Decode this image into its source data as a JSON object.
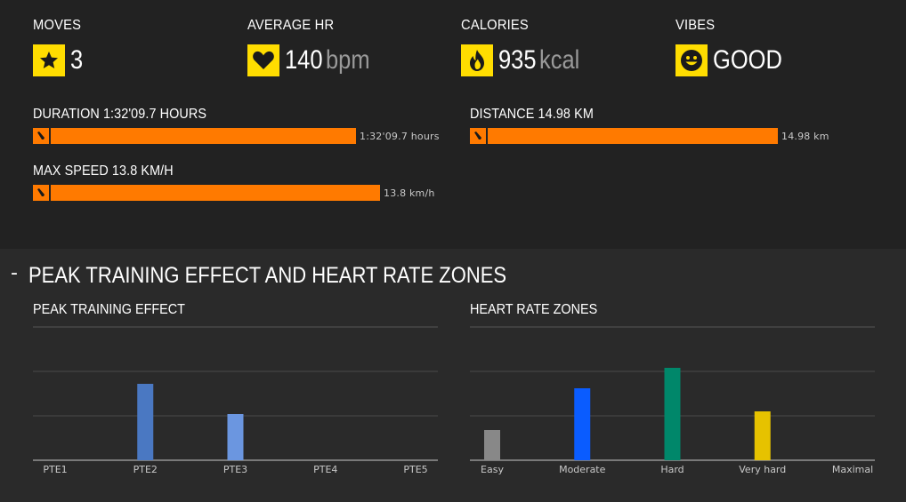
{
  "stats": [
    {
      "title": "MOVES",
      "value": "3",
      "unit": "",
      "icon": "star-icon"
    },
    {
      "title": "AVERAGE HR",
      "value": "140",
      "unit": "bpm",
      "icon": "heart-icon"
    },
    {
      "title": "CALORIES",
      "value": "935",
      "unit": "kcal",
      "icon": "flame-icon"
    },
    {
      "title": "VIBES",
      "value": "GOOD",
      "unit": "",
      "icon": "smiley-icon"
    }
  ],
  "bars": {
    "duration": {
      "title": "DURATION 1:32'09.7 HOURS",
      "label": "1:32'09.7 hours",
      "fraction": 0.95,
      "icon": "sneaker-icon"
    },
    "distance": {
      "title": "DISTANCE 14.98 KM",
      "label": "14.98 km",
      "fraction": 0.95,
      "icon": "sneaker-icon"
    },
    "max_speed": {
      "title": "MAX SPEED 13.8 KM/H",
      "label": "13.8 km/h",
      "fraction": 0.95,
      "icon": "sneaker-icon"
    }
  },
  "section": {
    "collapse_symbol": "-",
    "title": "PEAK TRAINING EFFECT AND HEART RATE ZONES"
  },
  "colors": {
    "accent": "#ffdd00",
    "bar": "#ff7a00"
  },
  "chart_data": [
    {
      "type": "bar",
      "title": "PEAK TRAINING EFFECT",
      "categories": [
        "PTE1",
        "PTE2",
        "PTE3",
        "PTE4",
        "PTE5"
      ],
      "values": [
        0,
        1.72,
        1.04,
        0,
        0
      ],
      "colors": [
        "#4a78c2",
        "#4a78c2",
        "#6b96e0",
        "#4a78c2",
        "#4a78c2"
      ],
      "ylim": [
        0,
        2
      ],
      "grid": true
    },
    {
      "type": "bar",
      "title": "HEART RATE ZONES",
      "categories": [
        "Easy",
        "Moderate",
        "Hard",
        "Very hard",
        "Maximal"
      ],
      "values": [
        0.68,
        1.62,
        2.08,
        1.1,
        0
      ],
      "colors": [
        "#888888",
        "#0a5cff",
        "#00876a",
        "#e6c200",
        "#888888"
      ],
      "ylim": [
        0,
        2
      ],
      "grid": true
    }
  ]
}
